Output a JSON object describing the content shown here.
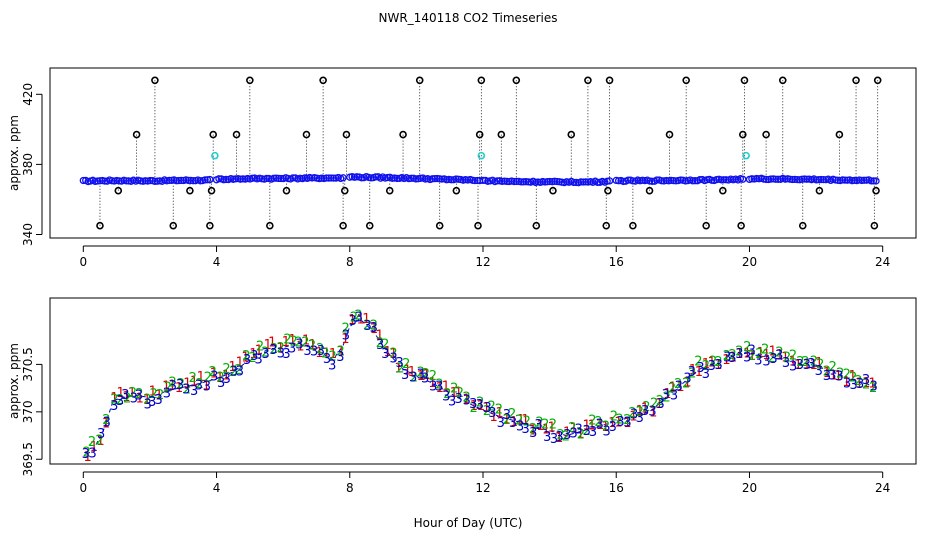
{
  "chart_data": [
    {
      "type": "scatter",
      "title": "NWR_140118  CO2 Timeseries",
      "xlabel": "",
      "ylabel": "approx. ppm",
      "xlim": [
        -1,
        25
      ],
      "ylim": [
        338,
        435
      ],
      "x_ticks": [
        0,
        4,
        8,
        12,
        16,
        20,
        24
      ],
      "x_tick_labels": [
        "0",
        "4",
        "8",
        "12",
        "16",
        "20",
        "24"
      ],
      "y_ticks": [
        340,
        380,
        420
      ],
      "y_tick_labels": [
        "340",
        "380",
        "420"
      ],
      "baseline_segments": [
        {
          "x": [
            0.0,
            1.0,
            2.0,
            3.0,
            3.8
          ],
          "y": [
            370.5,
            370.8,
            370.6,
            370.9,
            371.0
          ]
        },
        {
          "x": [
            4.0,
            5.0,
            6.0,
            7.0,
            7.8
          ],
          "y": [
            371.5,
            371.9,
            372.0,
            372.2,
            372.3
          ]
        },
        {
          "x": [
            8.0,
            9.0,
            10.0,
            11.0,
            11.9
          ],
          "y": [
            372.8,
            372.5,
            372.0,
            371.4,
            370.9
          ]
        },
        {
          "x": [
            12.0,
            13.0,
            14.0,
            15.0,
            15.8
          ],
          "y": [
            370.8,
            370.2,
            370.0,
            369.9,
            370.3
          ]
        },
        {
          "x": [
            16.0,
            17.0,
            18.0,
            19.0,
            19.8
          ],
          "y": [
            370.6,
            370.7,
            370.9,
            371.2,
            371.5
          ]
        },
        {
          "x": [
            20.0,
            21.0,
            22.0,
            23.0,
            23.8
          ],
          "y": [
            371.8,
            371.6,
            371.4,
            371.0,
            370.8
          ]
        }
      ],
      "outliers": {
        "x": [
          0.5,
          1.05,
          1.6,
          2.15,
          2.7,
          3.2,
          3.8,
          3.85,
          3.9,
          4.6,
          5.0,
          5.6,
          6.1,
          6.7,
          7.2,
          7.8,
          7.85,
          7.9,
          8.6,
          9.2,
          9.6,
          10.1,
          10.7,
          11.2,
          11.85,
          11.9,
          11.95,
          12.55,
          13.0,
          13.6,
          14.1,
          14.65,
          15.15,
          15.7,
          15.75,
          15.8,
          16.5,
          17.0,
          17.6,
          18.1,
          18.7,
          19.2,
          19.75,
          19.8,
          19.85,
          20.5,
          21.0,
          21.6,
          22.1,
          22.7,
          23.2,
          23.75,
          23.8,
          23.85
        ],
        "y": [
          345,
          365,
          397,
          428,
          345,
          365,
          345,
          365,
          397,
          397,
          428,
          345,
          365,
          397,
          428,
          345,
          365,
          397,
          345,
          365,
          397,
          428,
          345,
          365,
          345,
          397,
          428,
          397,
          428,
          345,
          365,
          397,
          428,
          345,
          365,
          428,
          345,
          365,
          397,
          428,
          345,
          365,
          345,
          397,
          428,
          397,
          428,
          345,
          365,
          397,
          428,
          345,
          365,
          428
        ]
      },
      "cyan_points": {
        "x": [
          3.95,
          11.95,
          19.9
        ],
        "y": [
          385,
          385,
          385
        ]
      }
    },
    {
      "type": "scatter",
      "title": "",
      "xlabel": "Hour of Day (UTC)",
      "ylabel": "approx. ppm",
      "xlim": [
        -1,
        25
      ],
      "ylim": [
        369.45,
        371.2
      ],
      "x_ticks": [
        0,
        4,
        8,
        12,
        16,
        20,
        24
      ],
      "x_tick_labels": [
        "0",
        "4",
        "8",
        "12",
        "16",
        "20",
        "24"
      ],
      "y_ticks": [
        369.5,
        370.0,
        370.5
      ],
      "y_tick_labels": [
        "369.5",
        "370",
        "370.5"
      ],
      "series": [
        {
          "name": "1",
          "label": "1",
          "color": "#dd0000",
          "offset": 0.02
        },
        {
          "name": "2",
          "label": "2",
          "color": "#00b000",
          "offset": 0.035
        },
        {
          "name": "3",
          "label": "3",
          "color": "#0000cc",
          "offset": -0.01
        }
      ],
      "trend": {
        "x": [
          0.1,
          0.3,
          0.6,
          0.9,
          1.5,
          2.0,
          2.5,
          3.0,
          3.5,
          4.0,
          4.5,
          5.0,
          5.5,
          6.0,
          6.5,
          7.0,
          7.5,
          7.8,
          8.0,
          8.3,
          8.7,
          9.2,
          9.6,
          10.0,
          10.5,
          11.0,
          11.5,
          12.0,
          12.5,
          13.0,
          13.5,
          14.0,
          14.5,
          15.0,
          15.5,
          16.0,
          16.5,
          17.0,
          17.5,
          18.0,
          18.5,
          19.0,
          19.5,
          20.0,
          20.5,
          21.0,
          21.5,
          22.0,
          22.5,
          23.0,
          23.5,
          23.8
        ],
        "y": [
          369.55,
          369.6,
          369.8,
          370.12,
          370.18,
          370.15,
          370.22,
          370.26,
          370.3,
          370.35,
          370.42,
          370.55,
          370.65,
          370.68,
          370.72,
          370.65,
          370.55,
          370.7,
          370.9,
          370.98,
          370.85,
          370.6,
          370.45,
          370.38,
          370.3,
          370.2,
          370.1,
          370.02,
          369.95,
          369.9,
          369.85,
          369.8,
          369.75,
          369.8,
          369.85,
          369.9,
          369.95,
          370.0,
          370.15,
          370.3,
          370.45,
          370.52,
          370.6,
          370.62,
          370.6,
          370.55,
          370.5,
          370.48,
          370.42,
          370.35,
          370.3,
          370.25
        ]
      }
    }
  ]
}
